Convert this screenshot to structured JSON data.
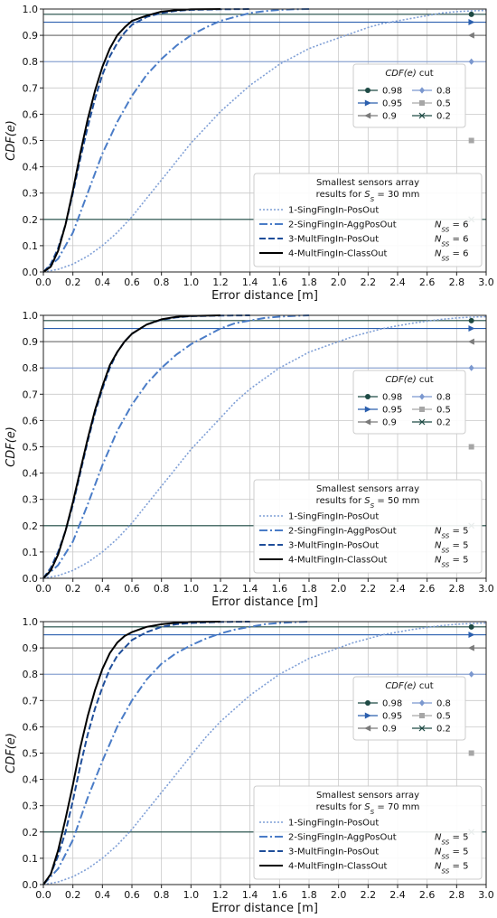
{
  "figure": {
    "xlabel": "Error distance [m]",
    "ylabel": "CDF(e)"
  },
  "chart_data": [
    {
      "type": "line",
      "panel": 1,
      "xlabel": "Error distance [m]",
      "ylabel": "CDF(e)",
      "xlim": [
        0,
        3.0
      ],
      "ylim": [
        0,
        1.0
      ],
      "xticks": [
        "0.0",
        "0.2",
        "0.4",
        "0.6",
        "0.8",
        "1.0",
        "1.2",
        "1.4",
        "1.6",
        "1.8",
        "2.0",
        "2.2",
        "2.4",
        "2.6",
        "2.8",
        "3.0"
      ],
      "yticks": [
        "0.0",
        "0.1",
        "0.2",
        "0.3",
        "0.4",
        "0.5",
        "0.6",
        "0.7",
        "0.8",
        "0.9",
        "1.0"
      ],
      "grid": true,
      "legend_title_lines": [
        "Smallest sensors array",
        "results for S_S = 30 mm"
      ],
      "series": [
        {
          "name": "1-SingFingIn-PosOut",
          "nss": "",
          "color": "#7f9fd6",
          "dash": "2,2",
          "width": 1.6,
          "x": [
            0,
            0.1,
            0.2,
            0.3,
            0.4,
            0.5,
            0.6,
            0.7,
            0.8,
            0.9,
            1.0,
            1.1,
            1.2,
            1.3,
            1.4,
            1.5,
            1.6,
            1.7,
            1.8,
            1.9,
            2.0,
            2.1,
            2.2,
            2.3,
            2.4,
            2.5,
            2.6,
            2.7,
            2.8,
            2.9,
            3.0
          ],
          "y": [
            0,
            0.01,
            0.03,
            0.06,
            0.1,
            0.15,
            0.21,
            0.28,
            0.35,
            0.42,
            0.49,
            0.55,
            0.61,
            0.66,
            0.71,
            0.75,
            0.79,
            0.82,
            0.85,
            0.87,
            0.89,
            0.91,
            0.93,
            0.945,
            0.955,
            0.965,
            0.975,
            0.985,
            0.99,
            0.993,
            0.995
          ]
        },
        {
          "name": "2-SingFingIn-AggPosOut",
          "nss": "N_SS = 6",
          "color": "#4a7cc7",
          "dash": "9,3,2,3",
          "width": 2,
          "x": [
            0,
            0.1,
            0.2,
            0.3,
            0.4,
            0.5,
            0.6,
            0.7,
            0.8,
            0.9,
            1.0,
            1.1,
            1.2,
            1.3,
            1.4,
            1.5,
            1.6,
            1.7,
            1.8
          ],
          "y": [
            0,
            0.05,
            0.15,
            0.3,
            0.45,
            0.57,
            0.67,
            0.75,
            0.81,
            0.86,
            0.9,
            0.93,
            0.955,
            0.97,
            0.985,
            0.992,
            0.997,
            0.999,
            1.0
          ]
        },
        {
          "name": "3-MultFingIn-PosOut",
          "nss": "N_SS = 6",
          "color": "#1f4e9a",
          "dash": "7,3",
          "width": 2,
          "x": [
            0,
            0.05,
            0.1,
            0.15,
            0.2,
            0.25,
            0.3,
            0.35,
            0.4,
            0.45,
            0.5,
            0.55,
            0.6,
            0.7,
            0.8,
            0.9,
            1.0,
            1.2,
            1.4
          ],
          "y": [
            0,
            0.03,
            0.09,
            0.18,
            0.3,
            0.43,
            0.55,
            0.66,
            0.75,
            0.82,
            0.87,
            0.91,
            0.94,
            0.97,
            0.985,
            0.993,
            0.997,
            0.999,
            1.0
          ]
        },
        {
          "name": "4-MultFingIn-ClassOut",
          "nss": "N_SS = 6",
          "color": "#000000",
          "dash": "",
          "width": 2,
          "x": [
            0,
            0.05,
            0.1,
            0.15,
            0.2,
            0.25,
            0.3,
            0.35,
            0.4,
            0.45,
            0.5,
            0.55,
            0.6,
            0.7,
            0.8,
            0.9,
            1.0,
            1.2
          ],
          "y": [
            0,
            0.02,
            0.08,
            0.18,
            0.31,
            0.45,
            0.58,
            0.69,
            0.78,
            0.85,
            0.9,
            0.93,
            0.955,
            0.975,
            0.99,
            0.996,
            0.999,
            1.0
          ]
        }
      ],
      "cut_lines": [
        {
          "label": "0.98",
          "y": 0.98,
          "color": "#1e4a44",
          "marker": "circle"
        },
        {
          "label": "0.95",
          "y": 0.95,
          "color": "#2b5fae",
          "marker": "triangle-right"
        },
        {
          "label": "0.9",
          "y": 0.9,
          "color": "#7a7a7a",
          "marker": "triangle-left"
        },
        {
          "label": "0.8",
          "y": 0.8,
          "color": "#7b98cf",
          "marker": "diamond"
        },
        {
          "label": "0.5",
          "y": 0.5,
          "color": "#a6a6a6",
          "marker": "square"
        },
        {
          "label": "0.2",
          "y": 0.2,
          "color": "#1e4a44",
          "marker": "x"
        }
      ],
      "cut_legend_title": "CDF(e) cut",
      "marker_x": 2.9
    },
    {
      "type": "line",
      "panel": 2,
      "xlabel": "Error distance [m]",
      "ylabel": "CDF(e)",
      "xlim": [
        0,
        3.0
      ],
      "ylim": [
        0,
        1.0
      ],
      "xticks": [
        "0.0",
        "0.2",
        "0.4",
        "0.6",
        "0.8",
        "1.0",
        "1.2",
        "1.4",
        "1.6",
        "1.8",
        "2.0",
        "2.2",
        "2.4",
        "2.6",
        "2.8",
        "3.0"
      ],
      "yticks": [
        "0.0",
        "0.1",
        "0.2",
        "0.3",
        "0.4",
        "0.5",
        "0.6",
        "0.7",
        "0.8",
        "0.9",
        "1.0"
      ],
      "grid": true,
      "legend_title_lines": [
        "Smallest sensors array",
        "results for S_S = 50 mm"
      ],
      "series": [
        {
          "name": "1-SingFingIn-PosOut",
          "nss": "",
          "color": "#7f9fd6",
          "dash": "2,2",
          "width": 1.6,
          "x": [
            0,
            0.1,
            0.2,
            0.3,
            0.4,
            0.5,
            0.6,
            0.7,
            0.8,
            0.9,
            1.0,
            1.1,
            1.2,
            1.3,
            1.4,
            1.5,
            1.6,
            1.7,
            1.8,
            1.9,
            2.0,
            2.1,
            2.2,
            2.3,
            2.4,
            2.5,
            2.6,
            2.7,
            2.8,
            2.9,
            3.0
          ],
          "y": [
            0,
            0.01,
            0.03,
            0.06,
            0.1,
            0.15,
            0.21,
            0.28,
            0.35,
            0.42,
            0.49,
            0.55,
            0.61,
            0.67,
            0.72,
            0.76,
            0.8,
            0.83,
            0.86,
            0.88,
            0.9,
            0.92,
            0.935,
            0.95,
            0.96,
            0.97,
            0.978,
            0.985,
            0.99,
            0.993,
            0.995
          ]
        },
        {
          "name": "2-SingFingIn-AggPosOut",
          "nss": "N_SS = 5",
          "color": "#4a7cc7",
          "dash": "9,3,2,3",
          "width": 2,
          "x": [
            0,
            0.1,
            0.2,
            0.3,
            0.4,
            0.5,
            0.6,
            0.7,
            0.8,
            0.9,
            1.0,
            1.1,
            1.2,
            1.3,
            1.4,
            1.5,
            1.6,
            1.7,
            1.8
          ],
          "y": [
            0,
            0.05,
            0.14,
            0.28,
            0.43,
            0.56,
            0.66,
            0.74,
            0.8,
            0.85,
            0.89,
            0.92,
            0.95,
            0.97,
            0.98,
            0.99,
            0.995,
            0.998,
            1.0
          ]
        },
        {
          "name": "3-MultFingIn-PosOut",
          "nss": "N_SS = 5",
          "color": "#1f4e9a",
          "dash": "7,3",
          "width": 2,
          "x": [
            0,
            0.05,
            0.1,
            0.15,
            0.2,
            0.25,
            0.3,
            0.35,
            0.4,
            0.45,
            0.5,
            0.55,
            0.6,
            0.7,
            0.8,
            0.9,
            1.0,
            1.2,
            1.4
          ],
          "y": [
            0,
            0.04,
            0.1,
            0.18,
            0.28,
            0.4,
            0.52,
            0.63,
            0.72,
            0.8,
            0.86,
            0.9,
            0.93,
            0.965,
            0.983,
            0.992,
            0.997,
            0.999,
            1.0
          ]
        },
        {
          "name": "4-MultFingIn-ClassOut",
          "nss": "N_SS = 5",
          "color": "#000000",
          "dash": "",
          "width": 2,
          "x": [
            0,
            0.05,
            0.1,
            0.15,
            0.2,
            0.25,
            0.3,
            0.35,
            0.4,
            0.45,
            0.5,
            0.55,
            0.6,
            0.7,
            0.8,
            0.9,
            1.0,
            1.2
          ],
          "y": [
            0,
            0.03,
            0.09,
            0.18,
            0.29,
            0.41,
            0.53,
            0.64,
            0.73,
            0.81,
            0.86,
            0.9,
            0.93,
            0.965,
            0.985,
            0.994,
            0.998,
            1.0
          ]
        }
      ],
      "cut_lines": [
        {
          "label": "0.98",
          "y": 0.98,
          "color": "#1e4a44",
          "marker": "circle"
        },
        {
          "label": "0.95",
          "y": 0.95,
          "color": "#2b5fae",
          "marker": "triangle-right"
        },
        {
          "label": "0.9",
          "y": 0.9,
          "color": "#7a7a7a",
          "marker": "triangle-left"
        },
        {
          "label": "0.8",
          "y": 0.8,
          "color": "#7b98cf",
          "marker": "diamond"
        },
        {
          "label": "0.5",
          "y": 0.5,
          "color": "#a6a6a6",
          "marker": "square"
        },
        {
          "label": "0.2",
          "y": 0.2,
          "color": "#1e4a44",
          "marker": "x"
        }
      ],
      "cut_legend_title": "CDF(e) cut",
      "marker_x": 2.9
    },
    {
      "type": "line",
      "panel": 3,
      "xlabel": "Error distance [m]",
      "ylabel": "CDF(e)",
      "xlim": [
        0,
        3.0
      ],
      "ylim": [
        0,
        1.0
      ],
      "xticks": [
        "0.0",
        "0.2",
        "0.4",
        "0.6",
        "0.8",
        "1.0",
        "1.2",
        "1.4",
        "1.6",
        "1.8",
        "2.0",
        "2.2",
        "2.4",
        "2.6",
        "2.8",
        "3.0"
      ],
      "yticks": [
        "0.0",
        "0.1",
        "0.2",
        "0.3",
        "0.4",
        "0.5",
        "0.6",
        "0.7",
        "0.8",
        "0.9",
        "1.0"
      ],
      "grid": true,
      "legend_title_lines": [
        "Smallest sensors array",
        "results for S_S = 70 mm"
      ],
      "series": [
        {
          "name": "1-SingFingIn-PosOut",
          "nss": "",
          "color": "#7f9fd6",
          "dash": "2,2",
          "width": 1.6,
          "x": [
            0,
            0.1,
            0.2,
            0.3,
            0.4,
            0.5,
            0.6,
            0.7,
            0.8,
            0.9,
            1.0,
            1.1,
            1.2,
            1.3,
            1.4,
            1.5,
            1.6,
            1.7,
            1.8,
            1.9,
            2.0,
            2.1,
            2.2,
            2.3,
            2.4,
            2.5,
            2.6,
            2.7,
            2.8,
            2.9,
            3.0
          ],
          "y": [
            0,
            0.01,
            0.03,
            0.06,
            0.1,
            0.15,
            0.21,
            0.28,
            0.35,
            0.42,
            0.49,
            0.56,
            0.62,
            0.67,
            0.72,
            0.76,
            0.8,
            0.83,
            0.86,
            0.88,
            0.9,
            0.92,
            0.935,
            0.95,
            0.96,
            0.97,
            0.978,
            0.985,
            0.99,
            0.993,
            0.995
          ]
        },
        {
          "name": "2-SingFingIn-AggPosOut",
          "nss": "N_SS = 5",
          "color": "#4a7cc7",
          "dash": "9,3,2,3",
          "width": 2,
          "x": [
            0,
            0.1,
            0.2,
            0.3,
            0.4,
            0.5,
            0.6,
            0.7,
            0.8,
            0.9,
            1.0,
            1.1,
            1.2,
            1.3,
            1.4,
            1.5,
            1.6,
            1.7,
            1.8
          ],
          "y": [
            0,
            0.06,
            0.17,
            0.33,
            0.47,
            0.6,
            0.7,
            0.78,
            0.84,
            0.88,
            0.91,
            0.935,
            0.955,
            0.97,
            0.98,
            0.99,
            0.995,
            0.998,
            1.0
          ]
        },
        {
          "name": "3-MultFingIn-PosOut",
          "nss": "N_SS = 5",
          "color": "#1f4e9a",
          "dash": "7,3",
          "width": 2,
          "x": [
            0,
            0.05,
            0.1,
            0.15,
            0.2,
            0.25,
            0.3,
            0.35,
            0.4,
            0.45,
            0.5,
            0.55,
            0.6,
            0.7,
            0.8,
            0.9,
            1.0,
            1.2,
            1.4
          ],
          "y": [
            0,
            0.04,
            0.11,
            0.2,
            0.32,
            0.45,
            0.57,
            0.67,
            0.75,
            0.82,
            0.87,
            0.9,
            0.93,
            0.96,
            0.98,
            0.99,
            0.995,
            0.999,
            1.0
          ]
        },
        {
          "name": "4-MultFingIn-ClassOut",
          "nss": "N_SS = 5",
          "color": "#000000",
          "dash": "",
          "width": 2,
          "x": [
            0,
            0.05,
            0.1,
            0.15,
            0.2,
            0.25,
            0.3,
            0.35,
            0.4,
            0.45,
            0.5,
            0.55,
            0.6,
            0.7,
            0.8,
            0.9,
            1.0,
            1.2
          ],
          "y": [
            0,
            0.04,
            0.13,
            0.25,
            0.38,
            0.52,
            0.64,
            0.74,
            0.82,
            0.88,
            0.92,
            0.945,
            0.96,
            0.98,
            0.99,
            0.996,
            0.999,
            1.0
          ]
        }
      ],
      "cut_lines": [
        {
          "label": "0.98",
          "y": 0.98,
          "color": "#1e4a44",
          "marker": "circle"
        },
        {
          "label": "0.95",
          "y": 0.95,
          "color": "#2b5fae",
          "marker": "triangle-right"
        },
        {
          "label": "0.9",
          "y": 0.9,
          "color": "#7a7a7a",
          "marker": "triangle-left"
        },
        {
          "label": "0.8",
          "y": 0.8,
          "color": "#7b98cf",
          "marker": "diamond"
        },
        {
          "label": "0.5",
          "y": 0.5,
          "color": "#a6a6a6",
          "marker": "square"
        },
        {
          "label": "0.2",
          "y": 0.2,
          "color": "#1e4a44",
          "marker": "x"
        }
      ],
      "cut_legend_title": "CDF(e) cut",
      "marker_x": 2.9
    }
  ]
}
